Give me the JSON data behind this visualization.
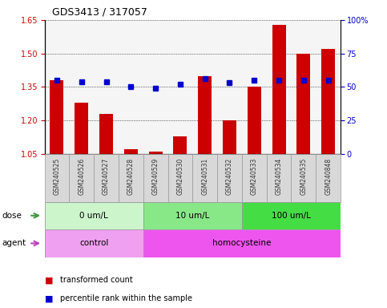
{
  "title": "GDS3413 / 317057",
  "samples": [
    "GSM240525",
    "GSM240526",
    "GSM240527",
    "GSM240528",
    "GSM240529",
    "GSM240530",
    "GSM240531",
    "GSM240532",
    "GSM240533",
    "GSM240534",
    "GSM240535",
    "GSM240848"
  ],
  "red_values": [
    1.38,
    1.28,
    1.23,
    1.07,
    1.06,
    1.13,
    1.4,
    1.2,
    1.35,
    1.63,
    1.5,
    1.52
  ],
  "blue_pct": [
    55,
    54,
    54,
    50,
    49,
    52,
    56,
    53,
    55,
    55,
    55,
    55
  ],
  "ymin": 1.05,
  "ymax": 1.65,
  "y_ticks_left": [
    1.05,
    1.2,
    1.35,
    1.5,
    1.65
  ],
  "y_ticks_right_vals": [
    0,
    25,
    50,
    75,
    100
  ],
  "y_ticks_right_labels": [
    "0",
    "25",
    "50",
    "75",
    "100%"
  ],
  "dose_groups": [
    {
      "label": "0 um/L",
      "start": 0,
      "end": 4,
      "color": "#ccf5cc"
    },
    {
      "label": "10 um/L",
      "start": 4,
      "end": 8,
      "color": "#88e888"
    },
    {
      "label": "100 um/L",
      "start": 8,
      "end": 12,
      "color": "#44dd44"
    }
  ],
  "agent_groups": [
    {
      "label": "control",
      "start": 0,
      "end": 4,
      "color": "#f0a0f0"
    },
    {
      "label": "homocysteine",
      "start": 4,
      "end": 12,
      "color": "#ee55ee"
    }
  ],
  "bar_color": "#cc0000",
  "dot_color": "#0000cc",
  "bg_color": "#f5f5f5",
  "sample_box_color": "#d8d8d8",
  "sample_box_edge": "#999999",
  "grid_linestyle": "dotted",
  "left_axis_color": "#cc0000",
  "right_axis_color": "#0000cc",
  "legend_red": "transformed count",
  "legend_blue": "percentile rank within the sample"
}
